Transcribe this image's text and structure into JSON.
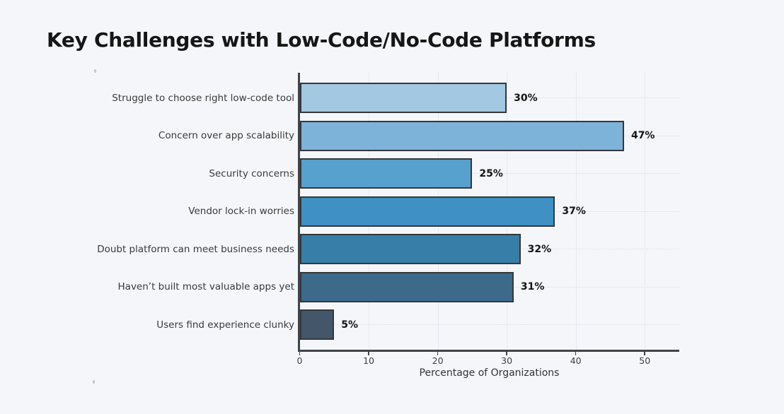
{
  "title": "Key Challenges with Low-Code/No-Code Platforms",
  "colors": {
    "background": "#f4f6f9",
    "title": "#161616",
    "category_label": "#3a3a3a",
    "value_label": "#141414",
    "tick_label": "#3b4046",
    "axis_label": "#333333",
    "spine": "#3f444b",
    "grid": "#d9dee4",
    "speck": "#c3c7cf",
    "bar_edge": "#33383d"
  },
  "chart_data": {
    "type": "bar",
    "orientation": "horizontal",
    "title": "Key Challenges with Low-Code/No-Code Platforms",
    "categories": [
      "Struggle to choose right low-code tool",
      "Concern over app scalability",
      "Security concerns",
      "Vendor lock-in worries",
      "Doubt platform can meet business needs",
      "Haven’t built most valuable apps yet",
      "Users find experience clunky"
    ],
    "values": [
      30,
      47,
      25,
      37,
      32,
      31,
      5
    ],
    "value_labels": [
      "30%",
      "47%",
      "25%",
      "37%",
      "32%",
      "31%",
      "5%"
    ],
    "bar_colors": [
      "#a2c8e2",
      "#7db3d8",
      "#57a1cf",
      "#3e90c5",
      "#377ea8",
      "#3d6a8b",
      "#44566a"
    ],
    "xlabel": "Percentage of Organizations",
    "xlim": [
      0,
      55
    ],
    "xticks": [
      0,
      10,
      20,
      30,
      40,
      50
    ],
    "xtick_labels": [
      "0",
      "10",
      "20",
      "30",
      "40",
      "50"
    ],
    "grid": "dotted",
    "legend": "none"
  }
}
